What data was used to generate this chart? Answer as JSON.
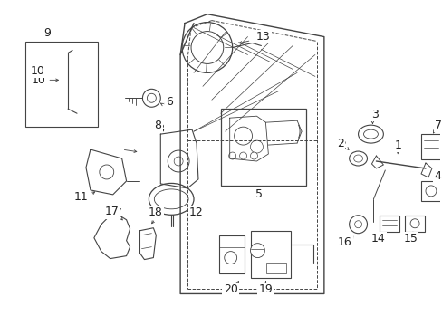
{
  "bg_color": "#ffffff",
  "line_color": "#444444",
  "label_color": "#222222",
  "label_fontsize": 9,
  "fig_width": 4.89,
  "fig_height": 3.6,
  "dpi": 100
}
